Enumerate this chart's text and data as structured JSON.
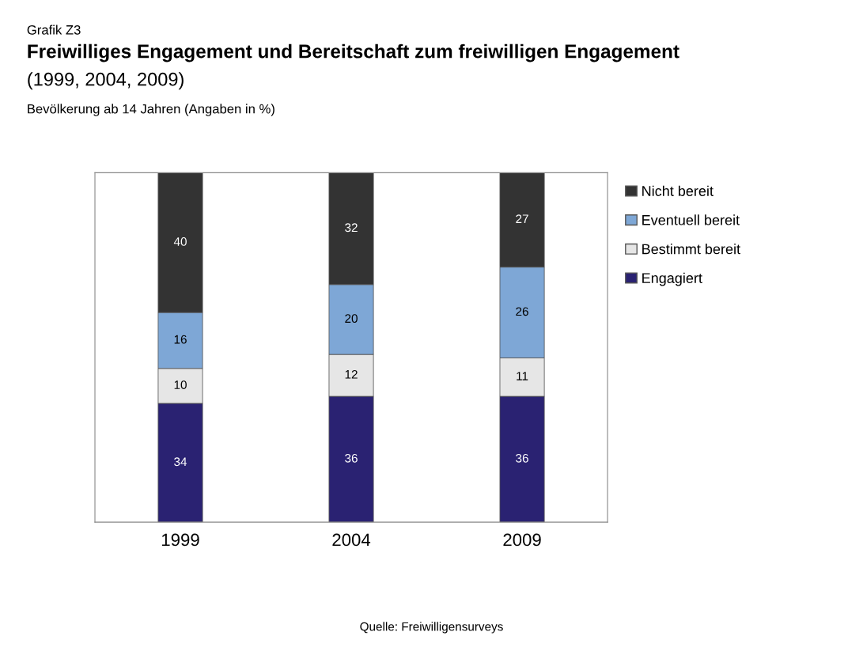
{
  "chart_data": {
    "type": "bar",
    "stacked": true,
    "title": "Freiwilliges Engagement und Bereitschaft zum freiwilligen Engagement",
    "subtitle": "(1999, 2004, 2009)",
    "annotations": [
      "Grafik Z3",
      "Bevölkerung ab 14 Jahren (Angaben in %)",
      "Quelle: Freiwilligensurveys"
    ],
    "categories": [
      "1999",
      "2004",
      "2009"
    ],
    "series": [
      {
        "name": "Engagiert",
        "color": "#2a2272",
        "values": [
          34,
          36,
          36
        ]
      },
      {
        "name": "Bestimmt bereit",
        "color": "#e6e6e6",
        "values": [
          10,
          12,
          11
        ]
      },
      {
        "name": "Eventuell bereit",
        "color": "#7ea7d6",
        "values": [
          16,
          20,
          26
        ]
      },
      {
        "name": "Nicht bereit",
        "color": "#333333",
        "values": [
          40,
          32,
          27
        ]
      }
    ],
    "ylim": [
      0,
      100
    ],
    "tick_labels": "x",
    "data_labels": true,
    "legend": "right",
    "grid": false
  }
}
